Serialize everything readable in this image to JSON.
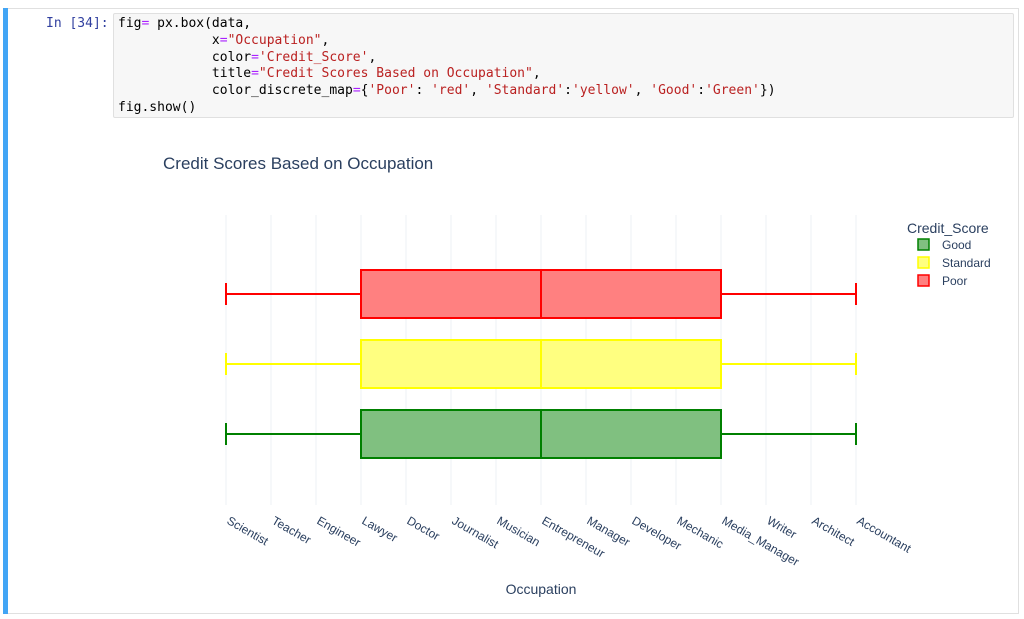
{
  "cell": {
    "prompt": "In [34]:",
    "code_lines": [
      [
        {
          "t": "fig"
        },
        {
          "t": "=",
          "c": "kw"
        },
        {
          "t": " px.box(data,"
        }
      ],
      [
        {
          "t": "            x"
        },
        {
          "t": "=",
          "c": "kw"
        },
        {
          "t": "\"Occupation\"",
          "c": "str"
        },
        {
          "t": ","
        }
      ],
      [
        {
          "t": "            color"
        },
        {
          "t": "=",
          "c": "kw"
        },
        {
          "t": "'Credit_Score'",
          "c": "str"
        },
        {
          "t": ","
        }
      ],
      [
        {
          "t": "            title"
        },
        {
          "t": "=",
          "c": "kw"
        },
        {
          "t": "\"Credit Scores Based on Occupation\"",
          "c": "str"
        },
        {
          "t": ","
        }
      ],
      [
        {
          "t": "            color_discrete_map"
        },
        {
          "t": "=",
          "c": "kw"
        },
        {
          "t": "{"
        },
        {
          "t": "'Poor'",
          "c": "str"
        },
        {
          "t": ": "
        },
        {
          "t": "'red'",
          "c": "str"
        },
        {
          "t": ", "
        },
        {
          "t": "'Standard'",
          "c": "str"
        },
        {
          "t": ":"
        },
        {
          "t": "'yellow'",
          "c": "str"
        },
        {
          "t": ", "
        },
        {
          "t": "'Good'",
          "c": "str"
        },
        {
          "t": ":"
        },
        {
          "t": "'Green'",
          "c": "str"
        },
        {
          "t": "})"
        }
      ],
      [
        {
          "t": "fig.show()"
        }
      ]
    ]
  },
  "chart_data": {
    "type": "box",
    "orientation": "horizontal",
    "title": "Credit Scores Based on Occupation",
    "xlabel": "Occupation",
    "ylabel": "",
    "categories": [
      "Scientist",
      "Teacher",
      "Engineer",
      "Lawyer",
      "Doctor",
      "Journalist",
      "Musician",
      "Entrepreneur",
      "Manager",
      "Developer",
      "Mechanic",
      "Media_Manager",
      "Writer",
      "Architect",
      "Accountant"
    ],
    "legend": {
      "title": "Credit_Score",
      "position": "top-right"
    },
    "grid": true,
    "series": [
      {
        "name": "Good",
        "color": "#008000",
        "fill": "#80c080",
        "min": "Scientist",
        "q1": "Lawyer",
        "median": "Entrepreneur",
        "q3": "Media_Manager",
        "max": "Accountant"
      },
      {
        "name": "Standard",
        "color": "#ffff00",
        "fill": "#ffff80",
        "min": "Scientist",
        "q1": "Lawyer",
        "median": "Entrepreneur",
        "q3": "Media_Manager",
        "max": "Accountant"
      },
      {
        "name": "Poor",
        "color": "#ff0000",
        "fill": "#ff8080",
        "min": "Scientist",
        "q1": "Lawyer",
        "median": "Entrepreneur",
        "q3": "Media_Manager",
        "max": "Accountant"
      }
    ]
  }
}
